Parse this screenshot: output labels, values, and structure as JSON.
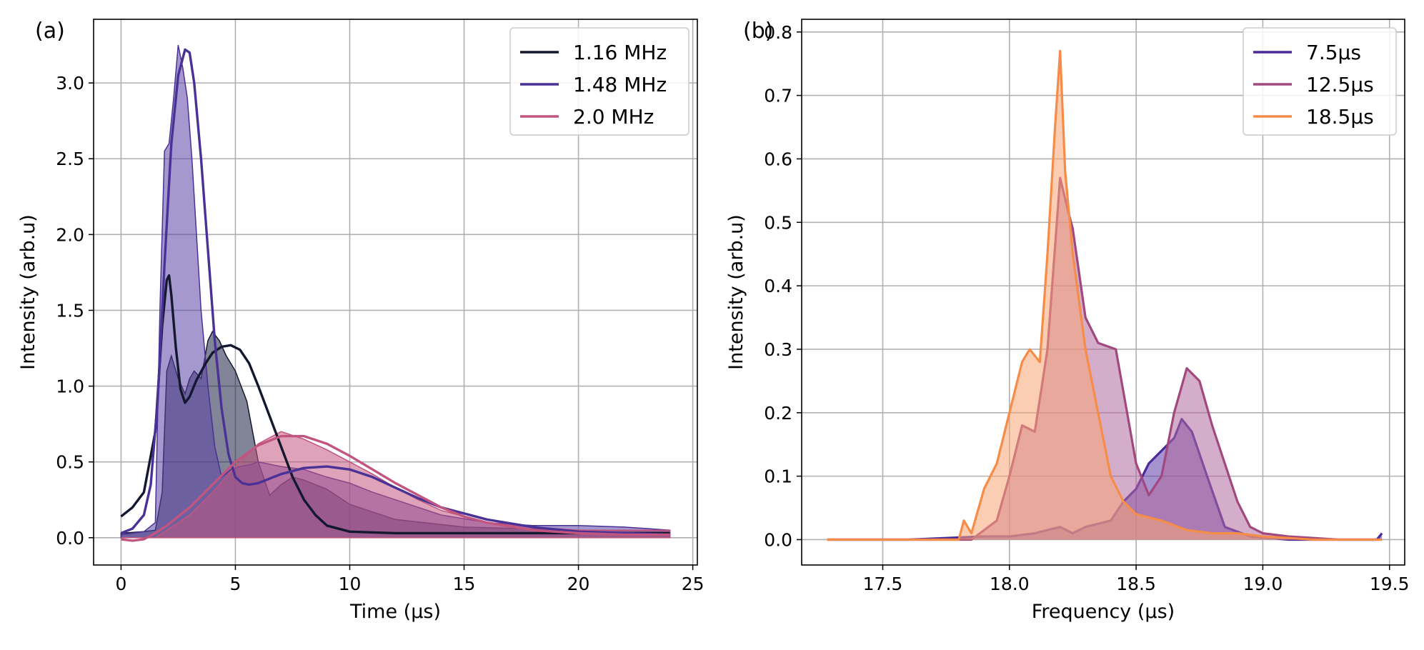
{
  "chart_data": [
    {
      "panel_label": "(a)",
      "type": "area",
      "xlabel": "Time (μs)",
      "ylabel": "Intensity (arb.u)",
      "xlim": [
        -1.2,
        25.2
      ],
      "ylim": [
        -0.18,
        3.42
      ],
      "xticks": [
        0,
        5,
        10,
        15,
        20,
        25
      ],
      "xtick_labels": [
        "0",
        "5",
        "10",
        "15",
        "20",
        "25"
      ],
      "yticks": [
        0.0,
        0.5,
        1.0,
        1.5,
        2.0,
        2.5,
        3.0
      ],
      "ytick_labels": [
        "0.0",
        "0.5",
        "1.0",
        "1.5",
        "2.0",
        "2.5",
        "3.0"
      ],
      "grid": true,
      "legend_position": "top-right",
      "series": [
        {
          "name": "1.16 MHz",
          "color": "#14182e",
          "fill_color": "#1b1f42",
          "data_x": [
            0,
            1.0,
            1.5,
            1.8,
            2.0,
            2.2,
            2.5,
            2.8,
            3.0,
            3.2,
            3.5,
            3.8,
            4.0,
            4.3,
            4.6,
            5.0,
            5.5,
            6.0,
            6.5,
            7.0,
            7.5,
            8.0,
            9.0,
            10.0,
            12.0,
            15.0,
            20.0,
            24.0
          ],
          "data_y": [
            0.03,
            0.04,
            0.05,
            0.3,
            1.1,
            1.2,
            1.05,
            0.95,
            1.05,
            1.1,
            1.05,
            1.3,
            1.36,
            1.3,
            1.2,
            1.1,
            0.9,
            0.5,
            0.28,
            0.35,
            0.4,
            0.38,
            0.32,
            0.22,
            0.12,
            0.07,
            0.05,
            0.05
          ],
          "fit_x": [
            0,
            0.5,
            1.0,
            1.5,
            1.8,
            2.0,
            2.1,
            2.2,
            2.4,
            2.6,
            2.8,
            3.0,
            3.3,
            3.7,
            4.0,
            4.4,
            4.8,
            5.2,
            5.6,
            6.0,
            6.5,
            7.0,
            7.5,
            8.0,
            8.5,
            9.0,
            10.0,
            12.0,
            16.0,
            24.0
          ],
          "fit_y": [
            0.14,
            0.2,
            0.3,
            0.7,
            1.4,
            1.7,
            1.73,
            1.6,
            1.25,
            0.98,
            0.89,
            0.93,
            1.04,
            1.15,
            1.22,
            1.26,
            1.27,
            1.24,
            1.15,
            1.0,
            0.8,
            0.6,
            0.4,
            0.25,
            0.15,
            0.08,
            0.04,
            0.03,
            0.03,
            0.03
          ]
        },
        {
          "name": "1.48 MHz",
          "color": "#4a3196",
          "fill_color": "#5b44a8",
          "data_x": [
            0,
            1.0,
            1.5,
            1.7,
            1.9,
            2.1,
            2.3,
            2.5,
            2.7,
            2.9,
            3.1,
            3.3,
            3.5,
            3.8,
            4.1,
            4.4,
            4.8,
            5.2,
            5.6,
            6.0,
            7.0,
            8.0,
            9.0,
            10.0,
            11.0,
            12.0,
            14.0,
            16.0,
            18.0,
            20.0,
            22.0,
            24.0
          ],
          "data_y": [
            0.02,
            0.04,
            0.1,
            1.5,
            2.55,
            2.6,
            2.9,
            3.25,
            3.1,
            2.9,
            2.5,
            2.0,
            1.5,
            1.0,
            0.6,
            0.4,
            0.45,
            0.47,
            0.48,
            0.5,
            0.47,
            0.45,
            0.4,
            0.36,
            0.3,
            0.25,
            0.15,
            0.1,
            0.08,
            0.08,
            0.07,
            0.05
          ],
          "fit_x": [
            0,
            0.5,
            1.0,
            1.3,
            1.6,
            1.9,
            2.2,
            2.5,
            2.8,
            3.0,
            3.2,
            3.5,
            3.8,
            4.1,
            4.4,
            4.7,
            5.0,
            5.3,
            5.6,
            6.0,
            6.5,
            7.0,
            8.0,
            9.0,
            10.0,
            11.0,
            12.0,
            13.0,
            14.0,
            16.0,
            18.0,
            20.0,
            24.0
          ],
          "fit_y": [
            0.03,
            0.06,
            0.15,
            0.35,
            0.9,
            1.8,
            2.6,
            3.05,
            3.22,
            3.2,
            3.0,
            2.5,
            1.9,
            1.3,
            0.85,
            0.55,
            0.4,
            0.36,
            0.35,
            0.36,
            0.39,
            0.42,
            0.46,
            0.47,
            0.45,
            0.4,
            0.33,
            0.26,
            0.2,
            0.12,
            0.07,
            0.04,
            0.02
          ]
        },
        {
          "name": "2.0 MHz",
          "color": "#c2557f",
          "fill_color": "#c2557f",
          "data_x": [
            0,
            1.5,
            2.0,
            3.0,
            4.0,
            5.0,
            6.0,
            7.0,
            8.0,
            9.0,
            10.0,
            11.0,
            12.0,
            13.0,
            14.0,
            16.0,
            18.0,
            20.0,
            22.0,
            24.0
          ],
          "data_y": [
            0.0,
            0.0,
            0.05,
            0.15,
            0.3,
            0.47,
            0.62,
            0.7,
            0.65,
            0.58,
            0.5,
            0.42,
            0.33,
            0.25,
            0.18,
            0.1,
            0.07,
            0.05,
            0.05,
            0.05
          ],
          "fit_x": [
            0,
            0.5,
            1.0,
            1.5,
            2.0,
            3.0,
            4.0,
            5.0,
            6.0,
            7.0,
            8.0,
            9.0,
            10.0,
            11.0,
            12.0,
            13.0,
            14.0,
            15.0,
            16.0,
            18.0,
            20.0,
            22.0,
            24.0
          ],
          "fit_y": [
            -0.01,
            -0.02,
            -0.01,
            0.03,
            0.08,
            0.2,
            0.35,
            0.5,
            0.61,
            0.67,
            0.67,
            0.62,
            0.54,
            0.45,
            0.36,
            0.28,
            0.2,
            0.14,
            0.1,
            0.05,
            0.03,
            0.02,
            0.02
          ]
        }
      ]
    },
    {
      "panel_label": "(b)",
      "type": "area",
      "xlabel": "Frequency (μs)",
      "ylabel": "Intensity (arb.u)",
      "xlim": [
        17.18,
        19.56
      ],
      "ylim": [
        -0.04,
        0.82
      ],
      "xticks": [
        17.5,
        18.0,
        18.5,
        19.0,
        19.5
      ],
      "xtick_labels": [
        "17.5",
        "18.0",
        "18.5",
        "19.0",
        "19.5"
      ],
      "yticks": [
        0.0,
        0.1,
        0.2,
        0.3,
        0.4,
        0.5,
        0.6,
        0.7,
        0.8
      ],
      "ytick_labels": [
        "0.0",
        "0.1",
        "0.2",
        "0.3",
        "0.4",
        "0.5",
        "0.6",
        "0.7",
        "0.8"
      ],
      "grid": true,
      "legend_position": "top-right",
      "series": [
        {
          "name": "7.5μs",
          "color": "#4a2a9a",
          "fill_color": "#5b3aa8",
          "x": [
            17.28,
            17.6,
            17.9,
            18.0,
            18.1,
            18.2,
            18.25,
            18.3,
            18.4,
            18.45,
            18.5,
            18.55,
            18.6,
            18.65,
            18.68,
            18.72,
            18.78,
            18.85,
            18.95,
            19.1,
            19.3,
            19.45,
            19.47
          ],
          "y": [
            0.0,
            0.0,
            0.005,
            0.005,
            0.01,
            0.02,
            0.01,
            0.02,
            0.03,
            0.06,
            0.08,
            0.12,
            0.14,
            0.16,
            0.19,
            0.17,
            0.1,
            0.02,
            0.005,
            0.0,
            0.0,
            0.0,
            0.01
          ]
        },
        {
          "name": "12.5μs",
          "color": "#a2487f",
          "fill_color": "#b06a9e",
          "x": [
            17.28,
            17.6,
            17.85,
            17.95,
            18.0,
            18.05,
            18.1,
            18.15,
            18.2,
            18.23,
            18.25,
            18.3,
            18.35,
            18.42,
            18.5,
            18.55,
            18.6,
            18.65,
            18.7,
            18.75,
            18.8,
            18.85,
            18.9,
            18.95,
            19.0,
            19.1,
            19.3,
            19.47
          ],
          "y": [
            0.0,
            0.0,
            0.0,
            0.03,
            0.1,
            0.18,
            0.17,
            0.3,
            0.57,
            0.52,
            0.49,
            0.35,
            0.31,
            0.3,
            0.12,
            0.07,
            0.1,
            0.2,
            0.27,
            0.25,
            0.18,
            0.12,
            0.06,
            0.02,
            0.01,
            0.005,
            0.0,
            0.0
          ]
        },
        {
          "name": "18.5μs",
          "color": "#f58c48",
          "fill_color": "#f8a474",
          "x": [
            17.28,
            17.6,
            17.8,
            17.82,
            17.85,
            17.9,
            17.95,
            18.0,
            18.05,
            18.08,
            18.12,
            18.15,
            18.18,
            18.2,
            18.22,
            18.25,
            18.3,
            18.35,
            18.4,
            18.45,
            18.5,
            18.6,
            18.7,
            18.8,
            18.9,
            19.0,
            19.2,
            19.47
          ],
          "y": [
            0.0,
            0.0,
            0.0,
            0.03,
            0.01,
            0.08,
            0.12,
            0.2,
            0.28,
            0.3,
            0.28,
            0.45,
            0.65,
            0.77,
            0.58,
            0.45,
            0.3,
            0.2,
            0.1,
            0.06,
            0.04,
            0.03,
            0.015,
            0.01,
            0.01,
            0.005,
            0.0,
            0.0
          ]
        }
      ]
    }
  ]
}
